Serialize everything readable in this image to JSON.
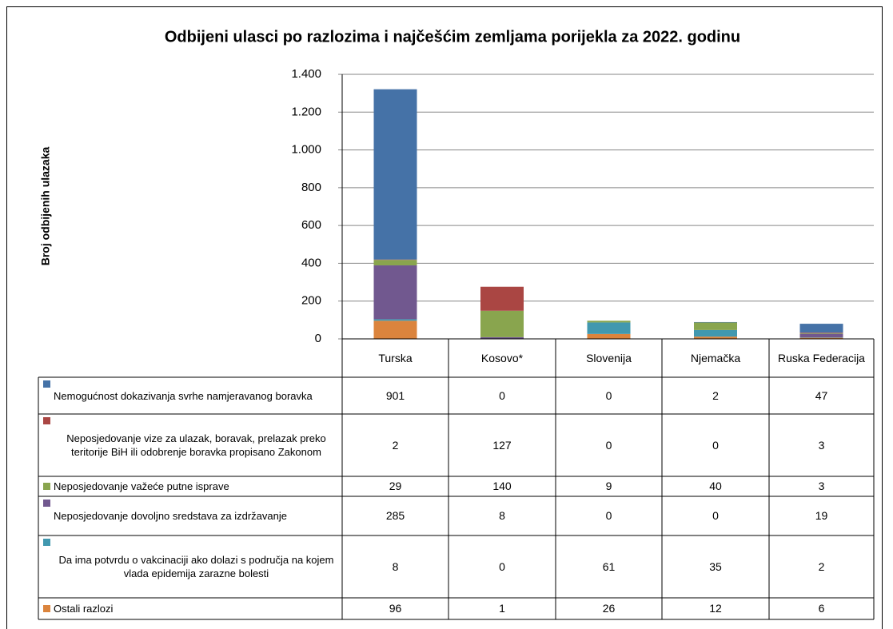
{
  "chart_data": {
    "type": "stacked_bar",
    "title": "Odbijeni ulasci po razlozima i najčešćim zemljama porijekla za 2022. godinu",
    "y_label": "Broj  odbijenih ulazaka",
    "categories": [
      "Turska",
      "Kosovo*",
      "Slovenija",
      "Njemačka",
      "Ruska Federacija"
    ],
    "ylim": [
      0,
      1400
    ],
    "yticks": [
      0,
      200,
      400,
      600,
      800,
      {
        "value": 1000,
        "label": "1.000"
      },
      {
        "value": 1200,
        "label": "1.200"
      },
      {
        "value": 1400,
        "label": "1.400"
      }
    ],
    "grid": true,
    "series": [
      {
        "name": "Nemogućnost dokazivanja svrhe namjeravanog boravka",
        "color": "#4572a7",
        "values": [
          901,
          0,
          0,
          2,
          47
        ]
      },
      {
        "name": "Neposjedovanje vize za ulazak, boravak, prelazak preko teritorije BiH ili odobrenje boravka propisano  Zakonom",
        "color": "#aa4643",
        "values": [
          2,
          127,
          0,
          0,
          3
        ]
      },
      {
        "name": "Neposjedovanje važeće putne isprave",
        "color": "#89a54e",
        "values": [
          29,
          140,
          9,
          40,
          3
        ]
      },
      {
        "name": "Neposjedovanje dovoljno sredstava za izdržavanje",
        "color": "#71588f",
        "values": [
          285,
          8,
          0,
          0,
          19
        ]
      },
      {
        "name": "Da ima potvrdu o vakcinaciji ako dolazi s područja na kojem vlada epidemija zarazne bolesti",
        "color": "#4198af",
        "values": [
          8,
          0,
          61,
          35,
          2
        ]
      },
      {
        "name": "Ostali razlozi",
        "color": "#db843d",
        "values": [
          96,
          1,
          26,
          12,
          6
        ]
      }
    ]
  }
}
